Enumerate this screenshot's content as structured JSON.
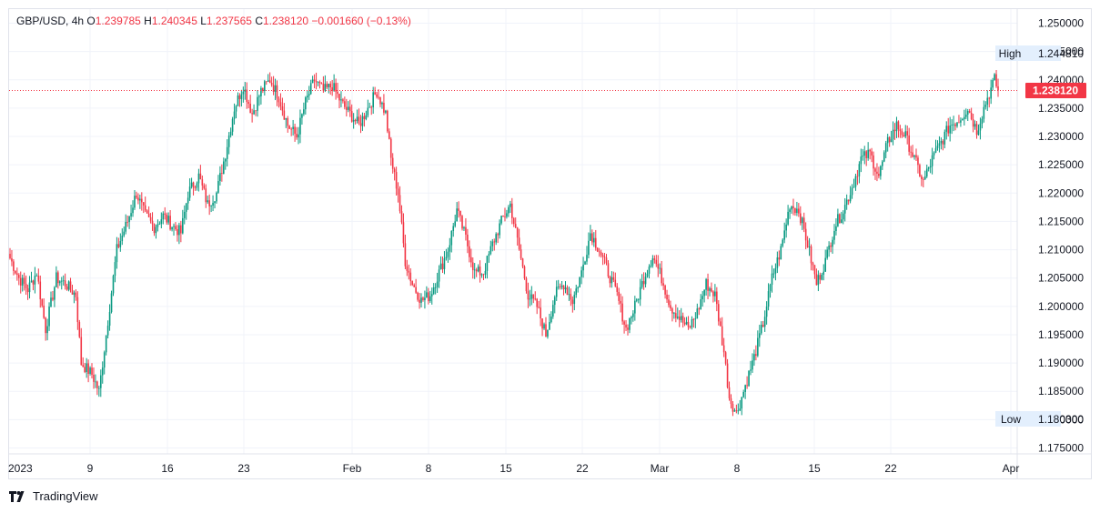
{
  "legend": {
    "symbol": "GBP/USD",
    "interval": "4h",
    "open_label": "O",
    "open": "1.239785",
    "high_label": "H",
    "high": "1.240345",
    "low_label": "L",
    "low": "1.237565",
    "close_label": "C",
    "close": "1.238120",
    "change": "−0.001660 (−0.13%)"
  },
  "badges": {
    "high_label": "High",
    "high_value": "1.244810",
    "low_label": "Low",
    "low_value": "1.180300",
    "last_price": "1.238120"
  },
  "footer": {
    "brand": "TradingView"
  },
  "colors": {
    "up": "#089981",
    "down": "#f23645",
    "grid": "#f0f3fa",
    "axis_text": "#131722",
    "badge_bg": "#e3effd"
  },
  "chart_data": {
    "type": "candlestick",
    "y_ticks": [
      "1.250000",
      "1.245000",
      "1.240000",
      "1.235000",
      "1.230000",
      "1.225000",
      "1.220000",
      "1.215000",
      "1.210000",
      "1.205000",
      "1.200000",
      "1.195000",
      "1.190000",
      "1.185000",
      "1.180000",
      "1.175000"
    ],
    "ylim": [
      1.175,
      1.25
    ],
    "x_ticks": [
      "2023",
      "9",
      "16",
      "23",
      "Feb",
      "8",
      "15",
      "22",
      "Mar",
      "8",
      "15",
      "22",
      "Apr"
    ],
    "grid": true,
    "close_path": [
      [
        0,
        1.2085
      ],
      [
        5,
        1.205
      ],
      [
        10,
        1.203
      ],
      [
        15,
        1.206
      ],
      [
        20,
        1.196
      ],
      [
        26,
        1.205
      ],
      [
        31,
        1.204
      ],
      [
        37,
        1.202
      ],
      [
        40,
        1.19
      ],
      [
        46,
        1.188
      ],
      [
        50,
        1.185
      ],
      [
        56,
        1.2
      ],
      [
        60,
        1.21
      ],
      [
        66,
        1.215
      ],
      [
        71,
        1.22
      ],
      [
        76,
        1.216
      ],
      [
        81,
        1.214
      ],
      [
        86,
        1.216
      ],
      [
        92,
        1.214
      ],
      [
        96,
        1.213
      ],
      [
        100,
        1.22
      ],
      [
        106,
        1.223
      ],
      [
        111,
        1.218
      ],
      [
        116,
        1.22
      ],
      [
        121,
        1.227
      ],
      [
        126,
        1.235
      ],
      [
        131,
        1.239
      ],
      [
        136,
        1.234
      ],
      [
        141,
        1.238
      ],
      [
        146,
        1.24
      ],
      [
        151,
        1.237
      ],
      [
        156,
        1.232
      ],
      [
        161,
        1.23
      ],
      [
        166,
        1.236
      ],
      [
        171,
        1.24
      ],
      [
        176,
        1.238
      ],
      [
        181,
        1.239
      ],
      [
        186,
        1.236
      ],
      [
        191,
        1.234
      ],
      [
        196,
        1.232
      ],
      [
        201,
        1.235
      ],
      [
        206,
        1.238
      ],
      [
        211,
        1.234
      ],
      [
        214,
        1.226
      ],
      [
        218,
        1.22
      ],
      [
        222,
        1.208
      ],
      [
        226,
        1.204
      ],
      [
        231,
        1.201
      ],
      [
        236,
        1.202
      ],
      [
        241,
        1.206
      ],
      [
        246,
        1.21
      ],
      [
        251,
        1.217
      ],
      [
        256,
        1.212
      ],
      [
        261,
        1.206
      ],
      [
        266,
        1.206
      ],
      [
        271,
        1.211
      ],
      [
        276,
        1.215
      ],
      [
        281,
        1.218
      ],
      [
        286,
        1.21
      ],
      [
        291,
        1.202
      ],
      [
        296,
        1.2
      ],
      [
        301,
        1.195
      ],
      [
        306,
        1.202
      ],
      [
        311,
        1.204
      ],
      [
        316,
        1.201
      ],
      [
        321,
        1.206
      ],
      [
        326,
        1.213
      ],
      [
        331,
        1.21
      ],
      [
        336,
        1.206
      ],
      [
        341,
        1.202
      ],
      [
        346,
        1.196
      ],
      [
        351,
        1.2
      ],
      [
        356,
        1.205
      ],
      [
        361,
        1.209
      ],
      [
        366,
        1.205
      ],
      [
        371,
        1.2
      ],
      [
        376,
        1.198
      ],
      [
        381,
        1.196
      ],
      [
        386,
        1.199
      ],
      [
        391,
        1.204
      ],
      [
        396,
        1.202
      ],
      [
        401,
        1.192
      ],
      [
        404,
        1.184
      ],
      [
        408,
        1.181
      ],
      [
        413,
        1.186
      ],
      [
        418,
        1.191
      ],
      [
        423,
        1.197
      ],
      [
        428,
        1.205
      ],
      [
        433,
        1.21
      ],
      [
        438,
        1.218
      ],
      [
        443,
        1.217
      ],
      [
        448,
        1.211
      ],
      [
        453,
        1.204
      ],
      [
        458,
        1.208
      ],
      [
        463,
        1.214
      ],
      [
        468,
        1.217
      ],
      [
        473,
        1.221
      ],
      [
        478,
        1.226
      ],
      [
        483,
        1.227
      ],
      [
        488,
        1.223
      ],
      [
        493,
        1.229
      ],
      [
        498,
        1.232
      ],
      [
        503,
        1.23
      ],
      [
        508,
        1.226
      ],
      [
        513,
        1.222
      ],
      [
        518,
        1.226
      ],
      [
        523,
        1.229
      ],
      [
        528,
        1.232
      ],
      [
        533,
        1.233
      ],
      [
        538,
        1.235
      ],
      [
        543,
        1.231
      ],
      [
        548,
        1.236
      ],
      [
        553,
        1.24
      ],
      [
        555,
        1.2381
      ]
    ],
    "candle_count": 556,
    "last_close": 1.23812,
    "high_marker": 1.24481,
    "low_marker": 1.1803
  }
}
